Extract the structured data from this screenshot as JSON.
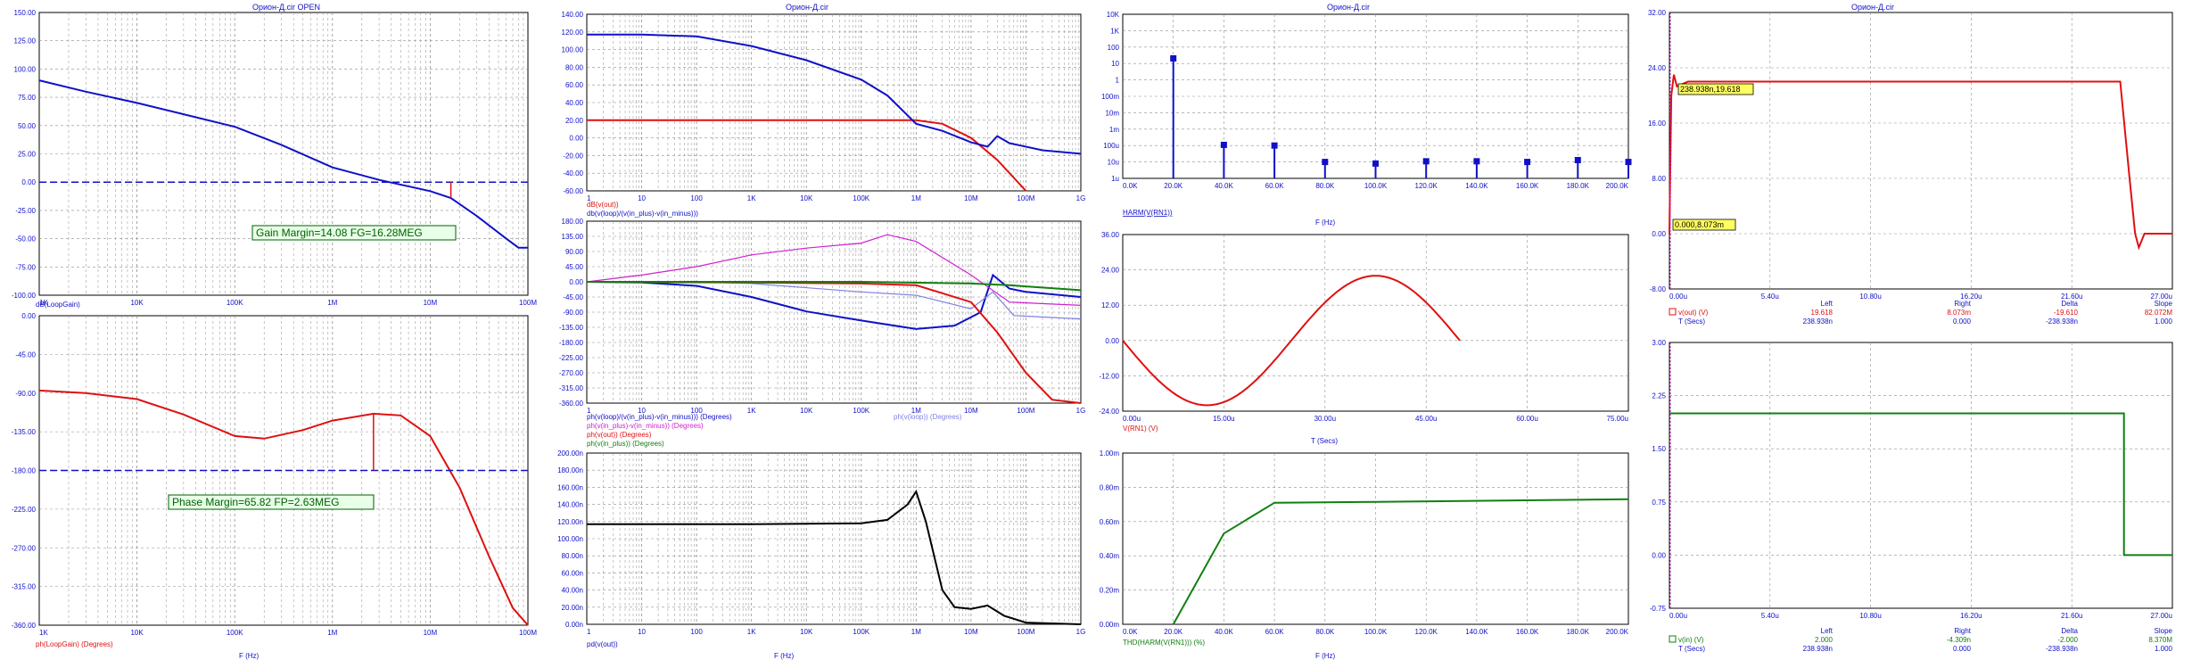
{
  "colors": {
    "blue": "#1010c8",
    "red": "#e01010",
    "magenta": "#d020d0",
    "green": "#108010",
    "lightblue": "#8080e0",
    "black": "#000000",
    "grid": "#909090",
    "label_green": "#006000",
    "annotation_bg": "#ffff60"
  },
  "titles": {
    "col1": "Орион-Д.cir OPEN",
    "col2": "Орион-Д.cir",
    "col3": "Орион-Д.cir",
    "col4": "Орион-Д.cir"
  },
  "freq_ticks": [
    "1K",
    "10K",
    "100K",
    "1M",
    "10M",
    "100M"
  ],
  "freq_ticks_wide": [
    "1",
    "10",
    "100",
    "1K",
    "10K",
    "100K",
    "1M",
    "10M",
    "100M",
    "1G"
  ],
  "annotations": {
    "gain_margin": "Gain Margin=14.08 FG=16.28MEG",
    "phase_margin": "Phase Margin=65.82 FP=2.63MEG",
    "cursor1": "238.938n,19.618",
    "cursor2": "0.000,8.073m"
  },
  "chart_data": [
    {
      "id": "loop_gain_mag",
      "type": "line",
      "title": "Орион-Д.cir OPEN",
      "xscale": "log",
      "xlim": [
        1000,
        100000000
      ],
      "ylim": [
        -100,
        150
      ],
      "yticks": [
        "150.00",
        "125.00",
        "100.00",
        "75.00",
        "50.00",
        "25.00",
        "0.00",
        "-25.00",
        "-50.00",
        "-75.00",
        "-100.00"
      ],
      "series": [
        {
          "name": "dB(LoopGain)",
          "color": "blue",
          "points": [
            [
              1000,
              90
            ],
            [
              3000,
              80
            ],
            [
              10000,
              70
            ],
            [
              30000,
              60
            ],
            [
              100000,
              49
            ],
            [
              300000,
              33
            ],
            [
              1000000,
              13
            ],
            [
              3000000,
              2
            ],
            [
              10000000,
              -8
            ],
            [
              16280000,
              -14
            ],
            [
              30000000,
              -30
            ],
            [
              60000000,
              -50
            ],
            [
              80000000,
              -58
            ],
            [
              100000000,
              -58
            ]
          ]
        }
      ],
      "xlabel": "",
      "legend": [
        "dB(LoopGain)"
      ]
    },
    {
      "id": "loop_gain_phase",
      "type": "line",
      "xscale": "log",
      "xlim": [
        1000,
        100000000
      ],
      "ylim": [
        -360,
        0
      ],
      "yticks": [
        "0.00",
        "-45.00",
        "-90.00",
        "-135.00",
        "-180.00",
        "-225.00",
        "-270.00",
        "-315.00",
        "-360.00"
      ],
      "series": [
        {
          "name": "ph(LoopGain) (Degrees)",
          "color": "red",
          "points": [
            [
              1000,
              -87
            ],
            [
              3000,
              -90
            ],
            [
              10000,
              -97
            ],
            [
              30000,
              -115
            ],
            [
              100000,
              -140
            ],
            [
              200000,
              -143
            ],
            [
              500000,
              -133
            ],
            [
              1000000,
              -122
            ],
            [
              2630000,
              -114
            ],
            [
              5000000,
              -116
            ],
            [
              10000000,
              -140
            ],
            [
              20000000,
              -200
            ],
            [
              40000000,
              -280
            ],
            [
              70000000,
              -340
            ],
            [
              100000000,
              -365
            ]
          ]
        }
      ],
      "xlabel": "F (Hz)",
      "legend": [
        "ph(LoopGain) (Degrees)"
      ]
    },
    {
      "id": "closed_loop_mag",
      "type": "line",
      "xscale": "log",
      "xlim": [
        1,
        1000000000
      ],
      "ylim": [
        -60,
        140
      ],
      "yticks": [
        "140.00",
        "120.00",
        "100.00",
        "80.00",
        "60.00",
        "40.00",
        "20.00",
        "0.00",
        "-20.00",
        "-40.00",
        "-60.00"
      ],
      "series": [
        {
          "name": "dB(v(out))",
          "color": "red",
          "points": [
            [
              1,
              20
            ],
            [
              1000,
              20
            ],
            [
              100000,
              20
            ],
            [
              1000000,
              20
            ],
            [
              3000000,
              16
            ],
            [
              10000000,
              0
            ],
            [
              30000000,
              -25
            ],
            [
              100000000,
              -60
            ]
          ]
        },
        {
          "name": "db(v(loop)/(v(in_plus)-v(in_minus)))",
          "color": "blue",
          "points": [
            [
              1,
              117
            ],
            [
              10,
              117
            ],
            [
              100,
              115
            ],
            [
              1000,
              104
            ],
            [
              10000,
              88
            ],
            [
              100000,
              66
            ],
            [
              300000,
              48
            ],
            [
              1000000,
              16
            ],
            [
              3000000,
              8
            ],
            [
              10000000,
              -5
            ],
            [
              20000000,
              -10
            ],
            [
              30000000,
              2
            ],
            [
              50000000,
              -6
            ],
            [
              200000000,
              -14
            ],
            [
              1000000000,
              -18
            ]
          ]
        }
      ],
      "legend": [
        "dB(v(out))",
        "db(v(loop)/(v(in_plus)-v(in_minus)))"
      ]
    },
    {
      "id": "phases",
      "type": "line",
      "xscale": "log",
      "xlim": [
        1,
        1000000000
      ],
      "ylim": [
        -360,
        180
      ],
      "yticks": [
        "180.00",
        "135.00",
        "90.00",
        "45.00",
        "0.00",
        "-45.00",
        "-90.00",
        "-135.00",
        "-180.00",
        "-225.00",
        "-270.00",
        "-315.00",
        "-360.00"
      ],
      "series": [
        {
          "name": "ph(v(loop)/(v(in_plus)-v(in_minus))) (Degrees)",
          "color": "blue",
          "points": [
            [
              1,
              0
            ],
            [
              10,
              -2
            ],
            [
              100,
              -12
            ],
            [
              1000,
              -45
            ],
            [
              10000,
              -88
            ],
            [
              100000,
              -115
            ],
            [
              1000000,
              -140
            ],
            [
              5000000,
              -130
            ],
            [
              15000000,
              -90
            ],
            [
              25000000,
              20
            ],
            [
              50000000,
              -20
            ],
            [
              100000000,
              -30
            ],
            [
              1000000000,
              -45
            ]
          ]
        },
        {
          "name": "ph(v(loop)) (Degrees)",
          "color": "lightblue",
          "points": [
            [
              1,
              0
            ],
            [
              100,
              0
            ],
            [
              1000,
              -5
            ],
            [
              100000,
              -30
            ],
            [
              1000000,
              -40
            ],
            [
              10000000,
              -80
            ],
            [
              25000000,
              -30
            ],
            [
              60000000,
              -100
            ],
            [
              1000000000,
              -110
            ]
          ]
        },
        {
          "name": "ph(v(in_plus)-v(in_minus)) (Degrees)",
          "color": "magenta",
          "points": [
            [
              1,
              0
            ],
            [
              10,
              20
            ],
            [
              100,
              45
            ],
            [
              1000,
              80
            ],
            [
              10000,
              100
            ],
            [
              100000,
              115
            ],
            [
              300000,
              140
            ],
            [
              1000000,
              120
            ],
            [
              10000000,
              20
            ],
            [
              50000000,
              -60
            ],
            [
              1000000000,
              -70
            ]
          ]
        },
        {
          "name": "ph(v(out)) (Degrees)",
          "color": "red",
          "points": [
            [
              1,
              0
            ],
            [
              1000,
              -2
            ],
            [
              100000,
              -5
            ],
            [
              1000000,
              -10
            ],
            [
              10000000,
              -60
            ],
            [
              30000000,
              -150
            ],
            [
              100000000,
              -270
            ],
            [
              300000000,
              -350
            ],
            [
              1000000000,
              -360
            ]
          ]
        },
        {
          "name": "ph(v(in_plus)) (Degrees)",
          "color": "green",
          "points": [
            [
              1,
              0
            ],
            [
              100000,
              0
            ],
            [
              10000000,
              -5
            ],
            [
              50000000,
              -10
            ],
            [
              1000000000,
              -25
            ]
          ]
        }
      ],
      "legend": [
        "ph(v(loop)/(v(in_plus)-v(in_minus))) (Degrees)",
        "ph(v(loop)) (Degrees)",
        "ph(v(in_plus)-v(in_minus)) (Degrees)",
        "ph(v(out)) (Degrees)",
        "ph(v(in_plus)) (Degrees)"
      ]
    },
    {
      "id": "phase_delay",
      "type": "line",
      "xscale": "log",
      "xlim": [
        1,
        1000000000
      ],
      "ylim": [
        0,
        200
      ],
      "yticks": [
        "200.00n",
        "180.00n",
        "160.00n",
        "140.00n",
        "120.00n",
        "100.00n",
        "80.00n",
        "60.00n",
        "40.00n",
        "20.00n",
        "0.00n"
      ],
      "series": [
        {
          "name": "pd(v(out))",
          "color": "black",
          "points": [
            [
              1,
              117
            ],
            [
              1000,
              117
            ],
            [
              100000,
              118
            ],
            [
              300000,
              122
            ],
            [
              700000,
              140
            ],
            [
              1000000,
              155
            ],
            [
              1500000,
              120
            ],
            [
              3000000,
              40
            ],
            [
              5000000,
              20
            ],
            [
              10000000,
              18
            ],
            [
              20000000,
              22
            ],
            [
              40000000,
              10
            ],
            [
              100000000,
              2
            ],
            [
              1000000000,
              0
            ]
          ]
        }
      ],
      "xlabel": "F (Hz)",
      "legend": [
        "pd(v(out))"
      ]
    },
    {
      "id": "harmonics",
      "type": "bar",
      "title": "Орион-Д.cir",
      "yscale": "log",
      "xlim": [
        0,
        200000
      ],
      "ylim_exp": [
        -6,
        4
      ],
      "yticks": [
        "10K",
        "1K",
        "100",
        "10",
        "1",
        "100m",
        "10m",
        "1m",
        "100u",
        "10u",
        "1u"
      ],
      "xticks": [
        "0.0K",
        "20.0K",
        "40.0K",
        "60.0K",
        "80.0K",
        "100.0K",
        "120.0K",
        "140.0K",
        "160.0K",
        "180.0K",
        "200.0K"
      ],
      "x": [
        20000,
        40000,
        60000,
        80000,
        100000,
        120000,
        140000,
        160000,
        180000,
        200000
      ],
      "values": [
        20.6,
        0.00011,
        0.0001,
        1e-05,
        8e-06,
        1.1e-05,
        1.1e-05,
        1e-05,
        1.3e-05,
        1e-05
      ],
      "xlabel": "F (Hz)",
      "legend": [
        "HARM(V(RN1))"
      ]
    },
    {
      "id": "input_sine",
      "type": "line",
      "xlim": [
        0,
        75
      ],
      "ylim": [
        -24,
        36
      ],
      "yticks": [
        "36.00",
        "24.00",
        "12.00",
        "0.00",
        "-12.00",
        "-24.00"
      ],
      "xticks": [
        "0.00u",
        "15.00u",
        "30.00u",
        "45.00u",
        "60.00u",
        "75.00u"
      ],
      "series": [
        {
          "name": "V(RN1) (V)",
          "color": "red",
          "func": "sine",
          "amp": 22,
          "period": 50,
          "t_end": 50
        }
      ],
      "xlabel": "T (Secs)",
      "legend": [
        "V(RN1) (V)"
      ]
    },
    {
      "id": "thd",
      "type": "line",
      "xlim": [
        0,
        200000
      ],
      "ylim": [
        0,
        1
      ],
      "yticks": [
        "1.00m",
        "0.80m",
        "0.60m",
        "0.40m",
        "0.20m",
        "0.00m"
      ],
      "xticks": [
        "0.0K",
        "20.0K",
        "40.0K",
        "60.0K",
        "80.0K",
        "100.0K",
        "120.0K",
        "140.0K",
        "160.0K",
        "180.0K",
        "200.0K"
      ],
      "series": [
        {
          "name": "THD(HARM(V(RN1))) (%)",
          "color": "green",
          "points": [
            [
              20000,
              0
            ],
            [
              40000,
              0.53
            ],
            [
              60000,
              0.71
            ],
            [
              100000,
              0.715
            ],
            [
              200000,
              0.73
            ]
          ]
        }
      ],
      "xlabel": "F (Hz)",
      "legend": [
        "THD(HARM(V(RN1))) (%)"
      ]
    },
    {
      "id": "output_pulse",
      "type": "line",
      "title": "Орион-Д.cir",
      "xlim": [
        0,
        27
      ],
      "ylim": [
        -8,
        32
      ],
      "yticks": [
        "32.00",
        "24.00",
        "16.00",
        "8.00",
        "0.00",
        "-8.00"
      ],
      "xticks": [
        "0.00u",
        "5.40u",
        "10.80u",
        "16.20u",
        "21.60u",
        "27.00u"
      ],
      "series": [
        {
          "name": "v(out) (V)",
          "color": "red",
          "points": [
            [
              0,
              0
            ],
            [
              0.1,
              20
            ],
            [
              0.24,
              23
            ],
            [
              0.4,
              21.3
            ],
            [
              1,
              22
            ],
            [
              24.2,
              22
            ],
            [
              24.7,
              8
            ],
            [
              25.0,
              0
            ],
            [
              25.2,
              -2
            ],
            [
              25.5,
              0
            ],
            [
              27,
              0
            ]
          ]
        }
      ],
      "cursor_table": {
        "headers": [
          "Left",
          "Right",
          "Delta",
          "Slope"
        ],
        "rows": [
          {
            "label": "v(out) (V)",
            "values": [
              "19.618",
              "8.073m",
              "-19.610",
              "82.072M"
            ]
          },
          {
            "label": "T (Secs)",
            "values": [
              "238.938n",
              "0.000",
              "-238.938n",
              "1.000"
            ]
          }
        ]
      }
    },
    {
      "id": "input_pulse",
      "type": "line",
      "xlim": [
        0,
        27
      ],
      "ylim": [
        -0.75,
        3
      ],
      "yticks": [
        "3.00",
        "2.25",
        "1.50",
        "0.75",
        "0.00",
        "-0.75"
      ],
      "xticks": [
        "0.00u",
        "5.40u",
        "10.80u",
        "16.20u",
        "21.60u",
        "27.00u"
      ],
      "series": [
        {
          "name": "v(in) (V)",
          "color": "green",
          "points": [
            [
              0,
              2
            ],
            [
              24.4,
              2
            ],
            [
              24.4,
              0
            ],
            [
              27,
              0
            ]
          ]
        }
      ],
      "cursor_table": {
        "headers": [
          "Left",
          "Right",
          "Delta",
          "Slope"
        ],
        "rows": [
          {
            "label": "v(in) (V)",
            "values": [
              "2.000",
              "-4.309n",
              "-2.000",
              "8.370M"
            ]
          },
          {
            "label": "T (Secs)",
            "values": [
              "238.938n",
              "0.000",
              "-238.938n",
              "1.000"
            ]
          }
        ]
      }
    }
  ]
}
